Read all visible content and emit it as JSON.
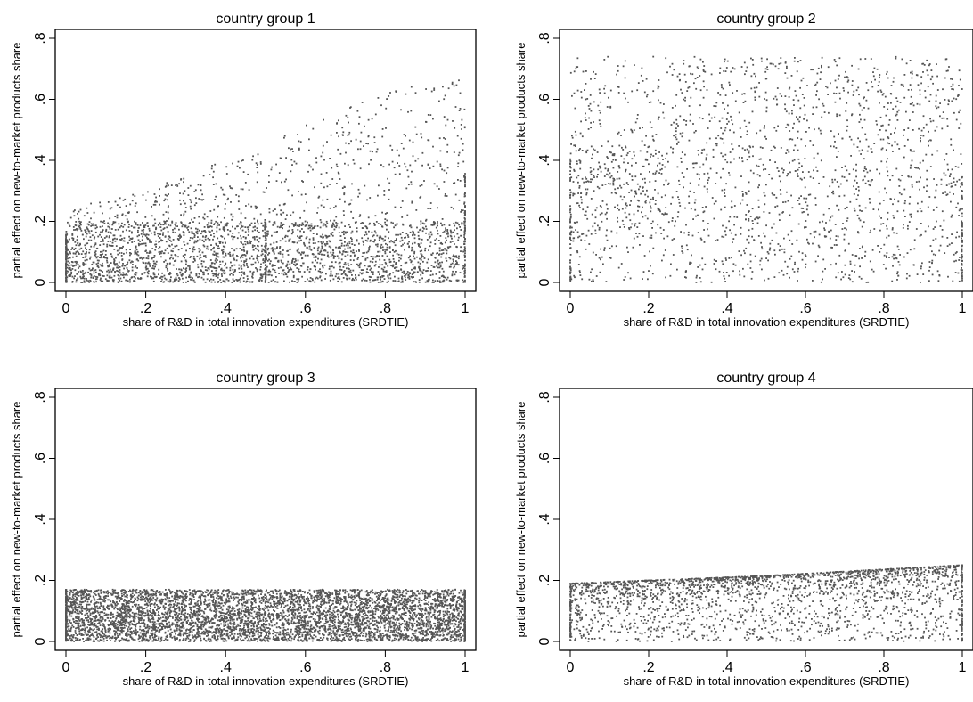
{
  "chart_data": [
    {
      "type": "scatter",
      "title": "country group 1",
      "xlabel": "share of R&D in total innovation expenditures (SRDTIE)",
      "ylabel": "partial effect on new-to-market products share",
      "xlim": [
        0,
        1
      ],
      "ylim": [
        0,
        0.8
      ],
      "xticks": [
        "0",
        ".2",
        ".4",
        ".6",
        ".8",
        "1"
      ],
      "yticks": [
        "0",
        ".2",
        ".4",
        ".6",
        ".8"
      ],
      "grid": false,
      "point_color": "#555555",
      "approx_points": 3000,
      "pattern": "lower band at 0-0.2 across all x; upper envelope rises from ~0.25 at x=0 to ~0.69 at x=1; dense vertical stacks at x=0, 0.5 and 1",
      "envelope_upper": [
        [
          0,
          0.24
        ],
        [
          0.2,
          0.3
        ],
        [
          0.4,
          0.4
        ],
        [
          0.5,
          0.45
        ],
        [
          0.6,
          0.52
        ],
        [
          0.8,
          0.62
        ],
        [
          1,
          0.69
        ]
      ],
      "stacks": [
        {
          "x": 0,
          "ymax": 0.16
        },
        {
          "x": 0.5,
          "ymax": 0.2
        },
        {
          "x": 1,
          "ymax": 0.38
        }
      ]
    },
    {
      "type": "scatter",
      "title": "country group 2",
      "xlabel": "share of R&D in total innovation expenditures (SRDTIE)",
      "ylabel": "partial effect on new-to-market products share",
      "xlim": [
        0,
        1
      ],
      "ylim": [
        0,
        0.8
      ],
      "xticks": [
        "0",
        ".2",
        ".4",
        ".6",
        ".8",
        "1"
      ],
      "yticks": [
        "0",
        ".2",
        ".4",
        ".6",
        ".8"
      ],
      "grid": false,
      "point_color": "#555555",
      "approx_points": 2000,
      "pattern": "points spread across 0-0.75 for all x, denser near 0.2-0.4 at low x; vertical stacks at x=0 and x=1",
      "envelope_upper": [
        [
          0,
          0.76
        ],
        [
          1,
          0.72
        ]
      ],
      "stacks": [
        {
          "x": 0,
          "ymax": 0.45
        },
        {
          "x": 1,
          "ymax": 0.35
        }
      ]
    },
    {
      "type": "scatter",
      "title": "country group 3",
      "xlabel": "share of R&D in total innovation expenditures (SRDTIE)",
      "ylabel": "partial effect on new-to-market products share",
      "xlim": [
        0,
        1
      ],
      "ylim": [
        0,
        0.8
      ],
      "xticks": [
        "0",
        ".2",
        ".4",
        ".6",
        ".8",
        "1"
      ],
      "yticks": [
        "0",
        ".2",
        ".4",
        ".6",
        ".8"
      ],
      "grid": false,
      "point_color": "#555555",
      "approx_points": 6000,
      "pattern": "dense uniform band between 0 and ~0.17 over the whole x range",
      "envelope_upper": [
        [
          0,
          0.17
        ],
        [
          1,
          0.17
        ]
      ],
      "stacks": [
        {
          "x": 0,
          "ymax": 0.17
        },
        {
          "x": 1,
          "ymax": 0.17
        }
      ]
    },
    {
      "type": "scatter",
      "title": "country group 4",
      "xlabel": "share of R&D in total innovation expenditures (SRDTIE)",
      "ylabel": "partial effect on new-to-market products share",
      "xlim": [
        0,
        1
      ],
      "ylim": [
        0,
        0.8
      ],
      "xticks": [
        "0",
        ".2",
        ".4",
        ".6",
        ".8",
        "1"
      ],
      "yticks": [
        "0",
        ".2",
        ".4",
        ".6",
        ".8"
      ],
      "grid": false,
      "point_color": "#555555",
      "approx_points": 2200,
      "pattern": "points between 0 and an upper envelope rising from ~0.19 at x=0 to ~0.25 at x=1, denser near the envelope; vertical stacks at x=0 and x=1",
      "envelope_upper": [
        [
          0,
          0.19
        ],
        [
          0.5,
          0.215
        ],
        [
          1,
          0.25
        ]
      ],
      "stacks": [
        {
          "x": 0,
          "ymax": 0.19
        },
        {
          "x": 1,
          "ymax": 0.25
        }
      ]
    }
  ]
}
